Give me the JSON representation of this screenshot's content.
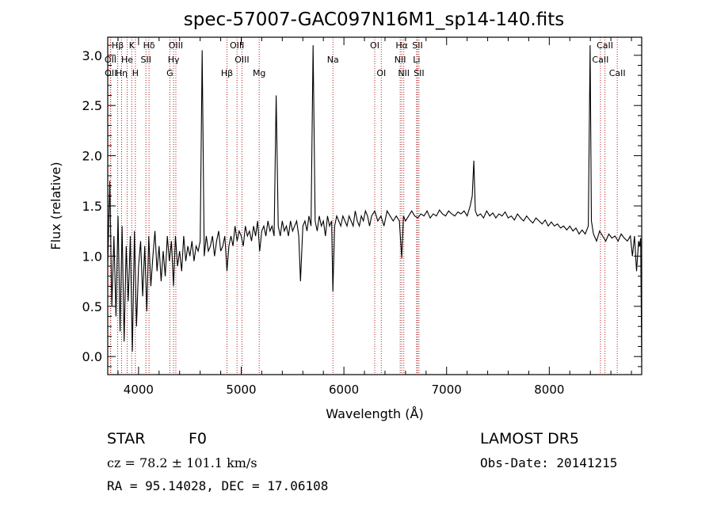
{
  "chart_data": {
    "type": "line",
    "title": "spec-57007-GAC097N16M1_sp14-140.fits",
    "xlabel": "Wavelength (Å)",
    "ylabel": "Flux (relative)",
    "xlim": [
      3700,
      8900
    ],
    "ylim": [
      -0.18,
      3.18
    ],
    "x_ticks": [
      4000,
      5000,
      6000,
      7000,
      8000
    ],
    "x_tick_labels": [
      "4000",
      "5000",
      "6000",
      "7000",
      "8000"
    ],
    "y_ticks": [
      0.0,
      0.5,
      1.0,
      1.5,
      2.0,
      2.5,
      3.0
    ],
    "y_tick_labels": [
      "0.0",
      "0.5",
      "1.0",
      "1.5",
      "2.0",
      "2.5",
      "3.0"
    ],
    "grid": false,
    "series": [
      {
        "color": "#000000",
        "x": [
          3700,
          3720,
          3740,
          3760,
          3780,
          3800,
          3820,
          3840,
          3860,
          3880,
          3900,
          3920,
          3940,
          3960,
          3980,
          4000,
          4020,
          4040,
          4060,
          4080,
          4100,
          4120,
          4140,
          4160,
          4180,
          4200,
          4220,
          4240,
          4260,
          4280,
          4300,
          4320,
          4340,
          4360,
          4380,
          4400,
          4420,
          4440,
          4460,
          4480,
          4500,
          4520,
          4540,
          4560,
          4580,
          4600,
          4620,
          4640,
          4660,
          4680,
          4700,
          4720,
          4740,
          4760,
          4780,
          4800,
          4820,
          4840,
          4861,
          4880,
          4900,
          4920,
          4940,
          4960,
          4980,
          5000,
          5020,
          5040,
          5060,
          5080,
          5100,
          5120,
          5140,
          5160,
          5180,
          5200,
          5220,
          5240,
          5260,
          5280,
          5300,
          5320,
          5340,
          5360,
          5380,
          5400,
          5420,
          5440,
          5460,
          5480,
          5500,
          5520,
          5540,
          5560,
          5577,
          5600,
          5620,
          5640,
          5660,
          5680,
          5700,
          5720,
          5740,
          5760,
          5780,
          5800,
          5820,
          5840,
          5860,
          5880,
          5893,
          5910,
          5930,
          5950,
          5970,
          5990,
          6010,
          6030,
          6050,
          6070,
          6090,
          6110,
          6130,
          6150,
          6170,
          6190,
          6210,
          6230,
          6250,
          6270,
          6300,
          6330,
          6360,
          6390,
          6420,
          6450,
          6480,
          6510,
          6540,
          6563,
          6580,
          6600,
          6630,
          6660,
          6690,
          6720,
          6750,
          6780,
          6810,
          6840,
          6870,
          6900,
          6930,
          6960,
          6990,
          7020,
          7050,
          7080,
          7110,
          7140,
          7170,
          7200,
          7230,
          7250,
          7265,
          7280,
          7300,
          7330,
          7360,
          7390,
          7420,
          7450,
          7480,
          7510,
          7540,
          7570,
          7600,
          7630,
          7660,
          7690,
          7720,
          7750,
          7780,
          7810,
          7840,
          7870,
          7900,
          7930,
          7960,
          7990,
          8020,
          8050,
          8080,
          8110,
          8140,
          8170,
          8200,
          8230,
          8260,
          8290,
          8320,
          8350,
          8380,
          8398,
          8410,
          8430,
          8460,
          8490,
          8520,
          8550,
          8580,
          8610,
          8640,
          8670,
          8700,
          8730,
          8760,
          8790,
          8810,
          8830,
          8850,
          8870,
          8880,
          8890,
          8900
        ],
        "y": [
          0.9,
          1.75,
          0.5,
          1.2,
          0.4,
          1.4,
          0.25,
          1.3,
          0.15,
          1.1,
          0.55,
          1.2,
          0.05,
          1.25,
          0.3,
          0.9,
          1.15,
          0.6,
          1.1,
          0.45,
          1.2,
          0.7,
          1.0,
          1.25,
          0.85,
          1.1,
          0.75,
          1.05,
          0.8,
          1.2,
          0.95,
          1.15,
          0.7,
          1.2,
          0.9,
          1.05,
          0.85,
          1.2,
          0.95,
          1.1,
          1.0,
          1.15,
          0.95,
          1.1,
          1.05,
          1.15,
          3.05,
          1.0,
          1.2,
          1.05,
          1.1,
          1.2,
          1.0,
          1.15,
          1.25,
          1.05,
          1.1,
          1.2,
          0.85,
          1.1,
          1.2,
          1.1,
          1.3,
          1.15,
          1.25,
          1.2,
          1.1,
          1.3,
          1.2,
          1.25,
          1.15,
          1.3,
          1.2,
          1.35,
          1.05,
          1.25,
          1.3,
          1.2,
          1.35,
          1.25,
          1.3,
          1.2,
          2.6,
          1.3,
          1.2,
          1.35,
          1.25,
          1.3,
          1.2,
          1.35,
          1.25,
          1.3,
          1.35,
          1.2,
          0.75,
          1.3,
          1.35,
          1.25,
          1.4,
          1.3,
          3.1,
          1.35,
          1.25,
          1.4,
          1.3,
          1.35,
          1.2,
          1.4,
          1.3,
          1.35,
          0.65,
          1.3,
          1.4,
          1.35,
          1.3,
          1.4,
          1.35,
          1.3,
          1.4,
          1.35,
          1.3,
          1.45,
          1.35,
          1.3,
          1.4,
          1.35,
          1.45,
          1.4,
          1.3,
          1.4,
          1.45,
          1.35,
          1.4,
          1.3,
          1.45,
          1.4,
          1.35,
          1.4,
          1.35,
          0.98,
          1.4,
          1.35,
          1.4,
          1.45,
          1.4,
          1.38,
          1.42,
          1.4,
          1.45,
          1.38,
          1.42,
          1.4,
          1.46,
          1.42,
          1.4,
          1.45,
          1.42,
          1.4,
          1.44,
          1.42,
          1.45,
          1.4,
          1.5,
          1.6,
          1.95,
          1.45,
          1.4,
          1.42,
          1.38,
          1.45,
          1.4,
          1.43,
          1.38,
          1.42,
          1.4,
          1.44,
          1.38,
          1.4,
          1.36,
          1.42,
          1.38,
          1.35,
          1.4,
          1.36,
          1.33,
          1.38,
          1.35,
          1.32,
          1.36,
          1.3,
          1.34,
          1.3,
          1.32,
          1.28,
          1.3,
          1.26,
          1.3,
          1.25,
          1.28,
          1.22,
          1.26,
          1.22,
          1.3,
          3.1,
          1.35,
          1.22,
          1.15,
          1.25,
          1.2,
          1.15,
          1.22,
          1.18,
          1.2,
          1.15,
          1.22,
          1.18,
          1.15,
          1.2,
          1.0,
          1.2,
          0.85,
          1.15,
          1.1,
          1.18,
          -0.05
        ]
      }
    ],
    "lines": [
      {
        "label": "Hβ",
        "x": 3797,
        "row": 0
      },
      {
        "label": "OII",
        "x": 3727,
        "row": 1
      },
      {
        "label": "OII",
        "x": 3729,
        "row": 2
      },
      {
        "label": "K",
        "x": 3934,
        "row": 0
      },
      {
        "label": "He",
        "x": 3889,
        "row": 1
      },
      {
        "label": "Hη",
        "x": 3835,
        "row": 2
      },
      {
        "label": "Hδ",
        "x": 4102,
        "row": 0
      },
      {
        "label": "SII",
        "x": 4072,
        "row": 1
      },
      {
        "label": "H",
        "x": 3969,
        "row": 2
      },
      {
        "label": "OIII",
        "x": 4363,
        "row": 0
      },
      {
        "label": "Hγ",
        "x": 4341,
        "row": 1
      },
      {
        "label": "G",
        "x": 4305,
        "row": 2
      },
      {
        "label": "OIII",
        "x": 4959,
        "row": 0
      },
      {
        "label": "OIII",
        "x": 5007,
        "row": 1
      },
      {
        "label": "Hβ",
        "x": 4861,
        "row": 2
      },
      {
        "label": "Mg",
        "x": 5175,
        "row": 2
      },
      {
        "label": "Na",
        "x": 5893,
        "row": 1
      },
      {
        "label": "OI",
        "x": 6300,
        "row": 0
      },
      {
        "label": "OI",
        "x": 6364,
        "row": 2
      },
      {
        "label": "Hα",
        "x": 6563,
        "row": 0
      },
      {
        "label": "NII",
        "x": 6548,
        "row": 1
      },
      {
        "label": "NII",
        "x": 6583,
        "row": 2
      },
      {
        "label": "SII",
        "x": 6717,
        "row": 0
      },
      {
        "label": "Li",
        "x": 6708,
        "row": 1
      },
      {
        "label": "SII",
        "x": 6731,
        "row": 2
      },
      {
        "label": "CaII",
        "x": 8542,
        "row": 0
      },
      {
        "label": "CaII",
        "x": 8498,
        "row": 1
      },
      {
        "label": "CaII",
        "x": 8662,
        "row": 2
      }
    ],
    "line_color": "#b01c1c"
  },
  "info": {
    "class_label": "STAR",
    "subclass": "F0",
    "survey": "LAMOST  DR5",
    "cz": "cz = 78.2 ± 101.1 km/s",
    "obs_date": "Obs-Date: 20141215",
    "coords": "RA =  95.14028, DEC =  17.06108"
  }
}
